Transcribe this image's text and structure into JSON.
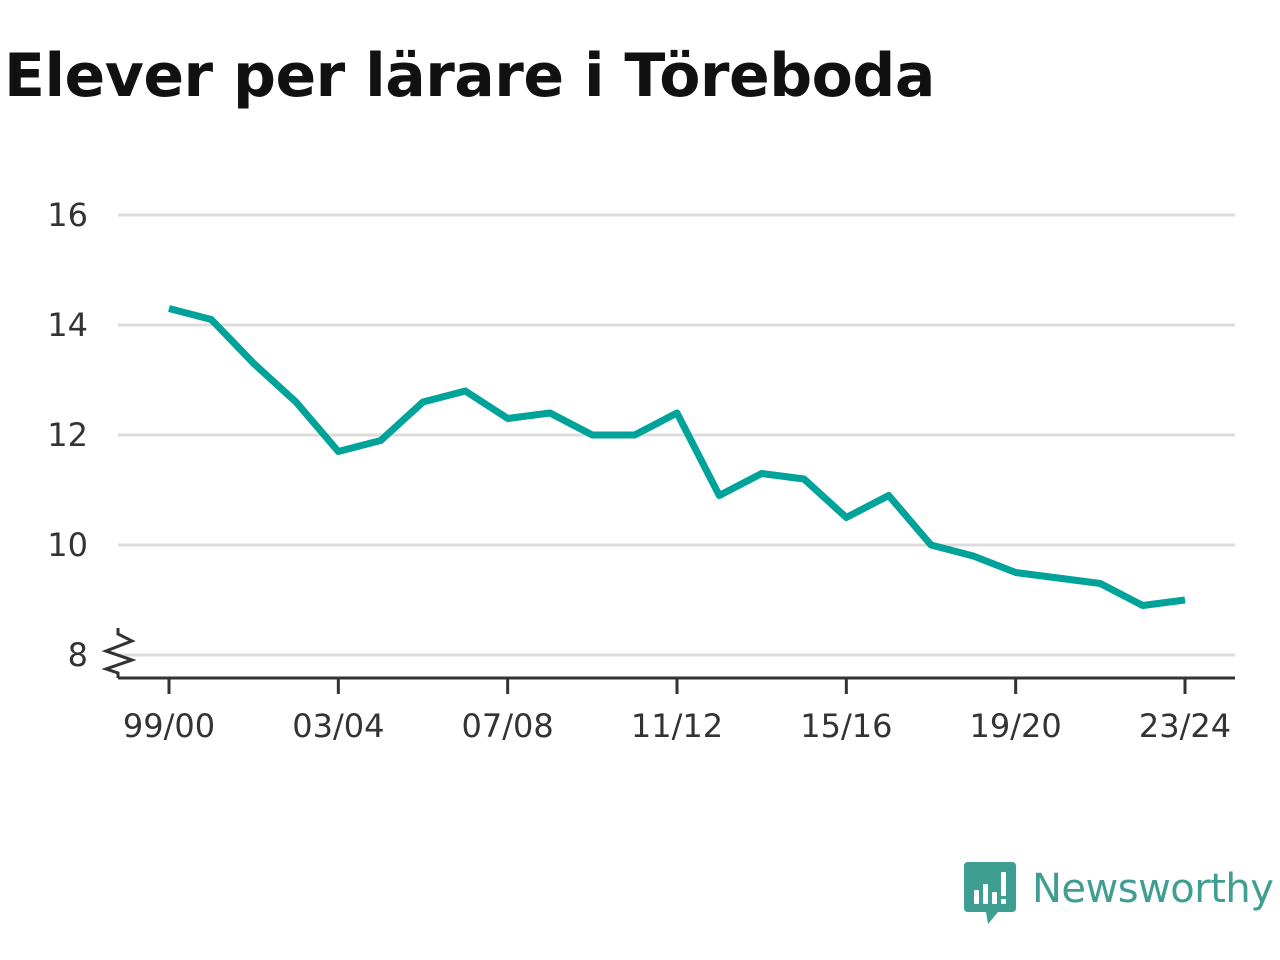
{
  "title": "Elever per lärare i Töreboda",
  "brand": {
    "name": "Newsworthy",
    "logo_icon": "bar-chart-speech-bubble-icon",
    "color": "#3f9e92"
  },
  "chart_data": {
    "type": "line",
    "title": "Elever per lärare i Töreboda",
    "xlabel": "",
    "ylabel": "",
    "x": [
      "99/00",
      "00/01",
      "01/02",
      "02/03",
      "03/04",
      "04/05",
      "05/06",
      "06/07",
      "07/08",
      "08/09",
      "09/10",
      "10/11",
      "11/12",
      "12/13",
      "13/14",
      "14/15",
      "15/16",
      "16/17",
      "17/18",
      "18/19",
      "19/20",
      "20/21",
      "21/22",
      "22/23",
      "23/24"
    ],
    "values": [
      14.3,
      14.1,
      13.3,
      12.6,
      11.7,
      11.9,
      12.6,
      12.8,
      12.3,
      12.4,
      12.0,
      12.0,
      12.4,
      10.9,
      11.3,
      11.2,
      10.5,
      10.9,
      10.0,
      9.8,
      9.5,
      9.4,
      9.3,
      8.9,
      9.0
    ],
    "x_tick_labels": [
      "99/00",
      "03/04",
      "07/08",
      "11/12",
      "15/16",
      "19/20",
      "23/24"
    ],
    "y_ticks": [
      8,
      10,
      12,
      14,
      16
    ],
    "ylim": [
      8,
      16
    ],
    "y_axis_break": true,
    "grid": true,
    "line_color": "#00a399",
    "grid_color": "#dcdcdc",
    "axis_color": "#333333"
  }
}
